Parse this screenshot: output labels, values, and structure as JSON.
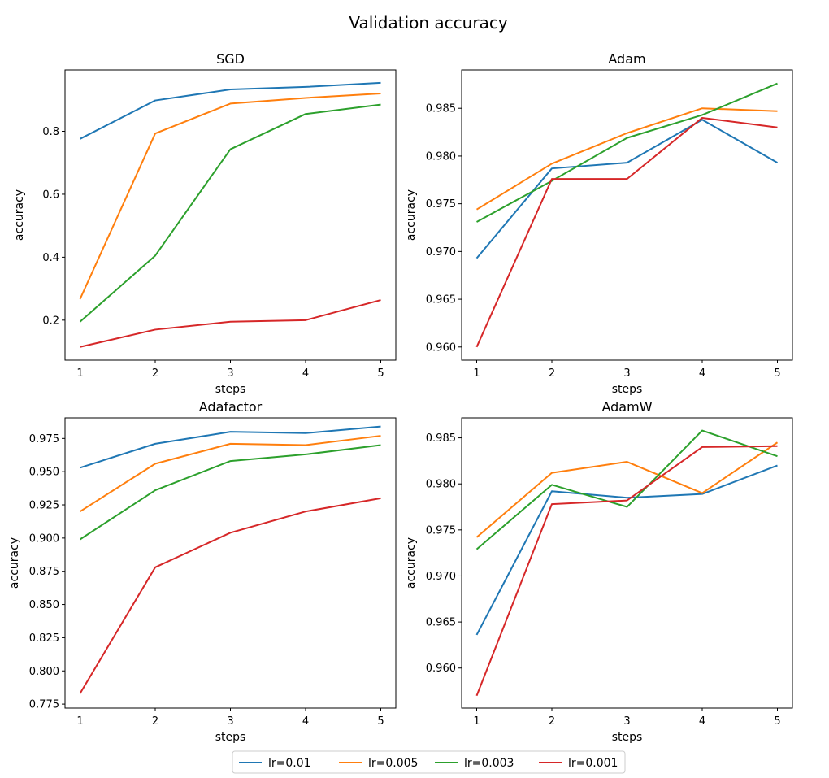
{
  "figure": {
    "title": "Validation accuracy"
  },
  "legend": {
    "placement": "bottom-center",
    "items": [
      {
        "label": "lr=0.01",
        "color": "#1f77b4"
      },
      {
        "label": "lr=0.005",
        "color": "#ff7f0e"
      },
      {
        "label": "lr=0.003",
        "color": "#2ca02c"
      },
      {
        "label": "lr=0.001",
        "color": "#d62728"
      }
    ]
  },
  "chart_data": [
    {
      "type": "line",
      "title": "SGD",
      "xlabel": "steps",
      "ylabel": "accuracy",
      "x": [
        1,
        2,
        3,
        4,
        5
      ],
      "xlim": [
        0.8,
        5.2
      ],
      "ylim": [
        0.073,
        0.995
      ],
      "yticks": [
        0.2,
        0.4,
        0.6,
        0.8
      ],
      "ytick_labels": [
        "0.2",
        "0.4",
        "0.6",
        "0.8"
      ],
      "grid": false,
      "series": [
        {
          "name": "lr=0.01",
          "color": "#1f77b4",
          "values": [
            0.776,
            0.898,
            0.933,
            0.941,
            0.954
          ]
        },
        {
          "name": "lr=0.005",
          "color": "#ff7f0e",
          "values": [
            0.267,
            0.793,
            0.888,
            0.906,
            0.92
          ]
        },
        {
          "name": "lr=0.003",
          "color": "#2ca02c",
          "values": [
            0.195,
            0.405,
            0.743,
            0.855,
            0.885
          ]
        },
        {
          "name": "lr=0.001",
          "color": "#d62728",
          "values": [
            0.115,
            0.17,
            0.195,
            0.2,
            0.264
          ]
        }
      ]
    },
    {
      "type": "line",
      "title": "Adam",
      "xlabel": "steps",
      "ylabel": "accuracy",
      "x": [
        1,
        2,
        3,
        4,
        5
      ],
      "xlim": [
        0.8,
        5.2
      ],
      "ylim": [
        0.95862,
        0.98902
      ],
      "yticks": [
        0.96,
        0.965,
        0.97,
        0.975,
        0.98,
        0.985
      ],
      "ytick_labels": [
        "0.960",
        "0.965",
        "0.970",
        "0.975",
        "0.980",
        "0.985"
      ],
      "grid": false,
      "series": [
        {
          "name": "lr=0.01",
          "color": "#1f77b4",
          "values": [
            0.9693,
            0.9787,
            0.9793,
            0.9838,
            0.9793
          ]
        },
        {
          "name": "lr=0.005",
          "color": "#ff7f0e",
          "values": [
            0.9744,
            0.9792,
            0.9824,
            0.985,
            0.9847
          ]
        },
        {
          "name": "lr=0.003",
          "color": "#2ca02c",
          "values": [
            0.9731,
            0.9774,
            0.9819,
            0.9843,
            0.9876
          ]
        },
        {
          "name": "lr=0.001",
          "color": "#d62728",
          "values": [
            0.96,
            0.9776,
            0.9776,
            0.984,
            0.983
          ]
        }
      ]
    },
    {
      "type": "line",
      "title": "Adafactor",
      "xlabel": "steps",
      "ylabel": "accuracy",
      "x": [
        1,
        2,
        3,
        4,
        5
      ],
      "xlim": [
        0.8,
        5.2
      ],
      "ylim": [
        0.772,
        0.9905
      ],
      "yticks": [
        0.775,
        0.8,
        0.825,
        0.85,
        0.875,
        0.9,
        0.925,
        0.95,
        0.975
      ],
      "ytick_labels": [
        "0.775",
        "0.800",
        "0.825",
        "0.850",
        "0.875",
        "0.900",
        "0.925",
        "0.950",
        "0.975"
      ],
      "grid": false,
      "series": [
        {
          "name": "lr=0.01",
          "color": "#1f77b4",
          "values": [
            0.953,
            0.971,
            0.98,
            0.979,
            0.984
          ]
        },
        {
          "name": "lr=0.005",
          "color": "#ff7f0e",
          "values": [
            0.92,
            0.956,
            0.971,
            0.97,
            0.977
          ]
        },
        {
          "name": "lr=0.003",
          "color": "#2ca02c",
          "values": [
            0.899,
            0.936,
            0.958,
            0.963,
            0.97
          ]
        },
        {
          "name": "lr=0.001",
          "color": "#d62728",
          "values": [
            0.783,
            0.878,
            0.904,
            0.92,
            0.93
          ]
        }
      ]
    },
    {
      "type": "line",
      "title": "AdamW",
      "xlabel": "steps",
      "ylabel": "accuracy",
      "x": [
        1,
        2,
        3,
        4,
        5
      ],
      "xlim": [
        0.8,
        5.2
      ],
      "ylim": [
        0.95565,
        0.98717
      ],
      "yticks": [
        0.96,
        0.965,
        0.97,
        0.975,
        0.98,
        0.985
      ],
      "ytick_labels": [
        "0.960",
        "0.965",
        "0.970",
        "0.975",
        "0.980",
        "0.985"
      ],
      "grid": false,
      "series": [
        {
          "name": "lr=0.01",
          "color": "#1f77b4",
          "values": [
            0.9636,
            0.9792,
            0.9785,
            0.9789,
            0.982
          ]
        },
        {
          "name": "lr=0.005",
          "color": "#ff7f0e",
          "values": [
            0.9742,
            0.9812,
            0.9824,
            0.979,
            0.9845
          ]
        },
        {
          "name": "lr=0.003",
          "color": "#2ca02c",
          "values": [
            0.9729,
            0.9799,
            0.9775,
            0.9858,
            0.983
          ]
        },
        {
          "name": "lr=0.001",
          "color": "#d62728",
          "values": [
            0.957,
            0.9778,
            0.9782,
            0.984,
            0.9841
          ]
        }
      ]
    }
  ]
}
